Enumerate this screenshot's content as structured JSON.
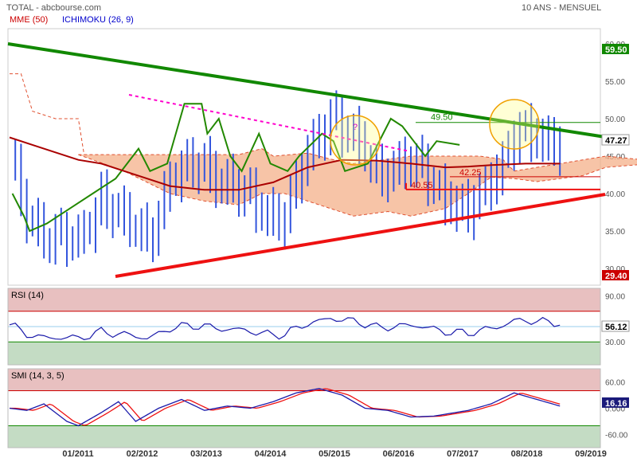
{
  "header": {
    "source": "TOTAL - abcbourse.com",
    "period": "10 ANS - MENSUEL",
    "indicators": [
      {
        "label": "MME (50)",
        "color": "#cc0000"
      },
      {
        "label": "ICHIMOKU (26, 9)",
        "color": "#0000cc"
      }
    ]
  },
  "colors": {
    "candle": "#3355dd",
    "mme": "#aa0000",
    "ichimoku_line": "#228800",
    "trend_top": "#118800",
    "trend_bottom": "#ee1111",
    "resistance": "#ff00cc",
    "cloud": "#f4b08a",
    "overbought_zone": "#e8c0c0",
    "oversold_zone": "#c4dcc4"
  },
  "chart_data": [
    {
      "type": "line",
      "panel": "price",
      "x_labels": [
        "01/2011",
        "02/2012",
        "03/2013",
        "04/2014",
        "05/2015",
        "06/2016",
        "07/2017",
        "08/2018",
        "09/2019"
      ],
      "y_ticks": [
        "30.00",
        "35.00",
        "40.00",
        "45.00",
        "50.00",
        "55.00",
        "60.00"
      ],
      "ylim": [
        29,
        61
      ],
      "current_value": "47.27",
      "annotations": [
        "49.50",
        "42.25",
        "40.55",
        "?"
      ],
      "trendlines": [
        {
          "name": "resistance",
          "value_label": "59.50",
          "color": "#118800"
        },
        {
          "name": "support",
          "value_label": "29.40",
          "color": "#ee1111"
        }
      ]
    },
    {
      "type": "line",
      "panel": "rsi",
      "label": "RSI (14)",
      "y_ticks": [
        "90.00",
        "30.00"
      ],
      "current_value": "56.12",
      "levels": [
        70,
        30
      ]
    },
    {
      "type": "line",
      "panel": "smi",
      "label": "SMI (14, 3, 5)",
      "y_ticks": [
        "60.00",
        "0.000",
        "-60.00"
      ],
      "current_value": "16.16",
      "levels": [
        40,
        -40
      ]
    }
  ]
}
